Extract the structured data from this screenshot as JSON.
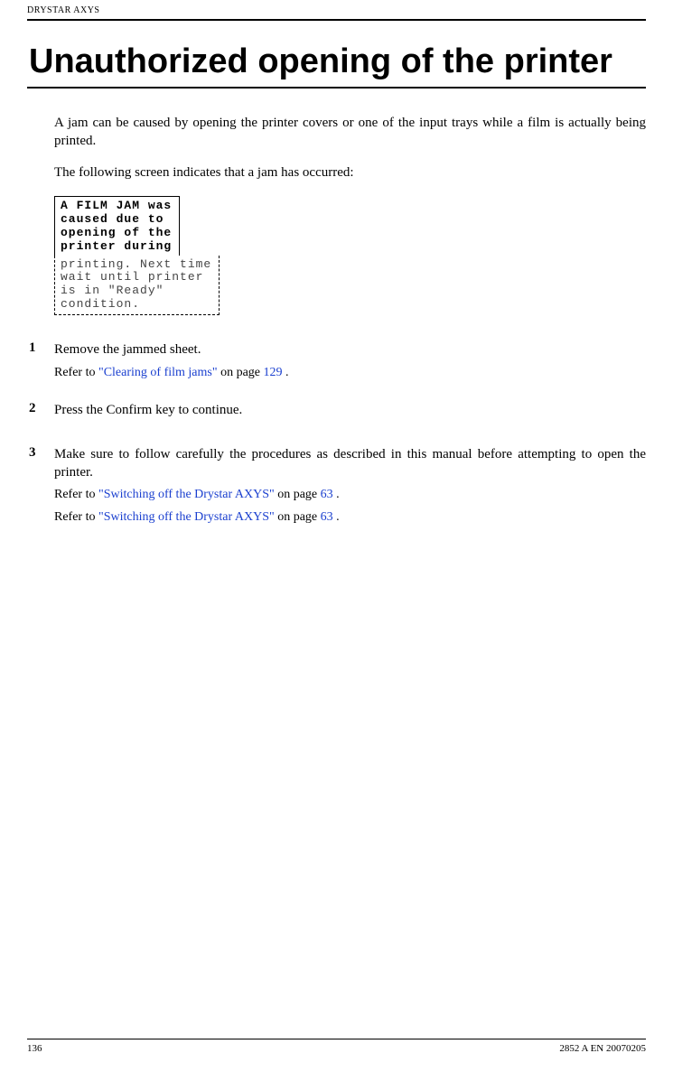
{
  "header": {
    "running_head": "DRYSTAR AXYS"
  },
  "title": "Unauthorized opening of the printer",
  "paragraphs": {
    "p1": "A jam can be caused by opening the printer covers or one of the input trays while a film is actually being printed.",
    "p2": "The following screen indicates that a jam has occurred:"
  },
  "lcd": {
    "top": "A FILM JAM was\ncaused due to\nopening of the\nprinter during",
    "bottom": "printing. Next time\nwait until printer\nis in \"Ready\"\ncondition."
  },
  "steps": [
    {
      "num": "1",
      "main": "Remove the jammed sheet.",
      "subs": [
        {
          "prefix": "Refer to ",
          "link": "\"Clearing of film jams\"",
          "mid": " on page ",
          "page": "129",
          "suffix": " ."
        }
      ]
    },
    {
      "num": "2",
      "main": "Press the Confirm key to continue.",
      "subs": []
    },
    {
      "num": "3",
      "main": "Make sure to follow carefully the procedures as described in this manual before attempting to open the printer.",
      "subs": [
        {
          "prefix": "Refer to ",
          "link": "\"Switching off the Drystar AXYS\"",
          "mid": " on page ",
          "page": "63",
          "suffix": " ."
        },
        {
          "prefix": "Refer to ",
          "link": "\"Switching off the Drystar AXYS\"",
          "mid": " on page ",
          "page": "63",
          "suffix": " ."
        }
      ]
    }
  ],
  "footer": {
    "page_number": "136",
    "doc_code": "2852 A EN 20070205"
  },
  "colors": {
    "link": "#1a3fcf",
    "text": "#000000",
    "bg": "#ffffff"
  }
}
